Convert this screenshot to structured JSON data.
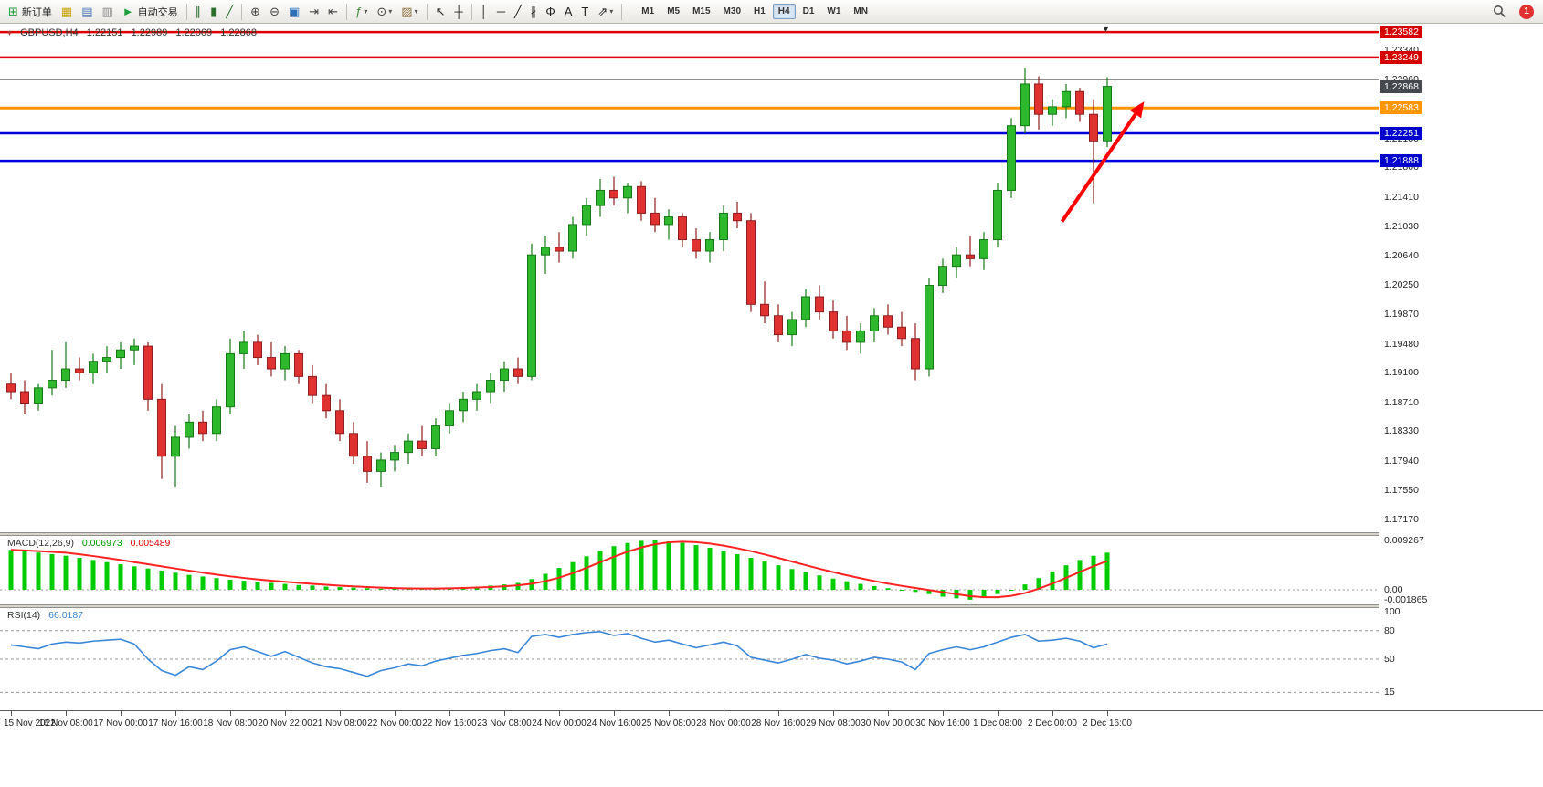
{
  "icons": {
    "symbol_window": "▾",
    "shift_marker": "▼"
  },
  "toolbar": {
    "groups": [
      {
        "name": "trade-group",
        "items": [
          {
            "name": "new-order-button",
            "icon": "new-order-icon",
            "glyph": "⊞",
            "color": "#1f9d3a",
            "label": "新订单"
          },
          {
            "name": "charts-window-button",
            "icon": "charts-icon",
            "glyph": "▦",
            "color": "#c8a200"
          },
          {
            "name": "navigator-button",
            "icon": "navigator-icon",
            "glyph": "▤",
            "color": "#4a76b8"
          },
          {
            "name": "terminal-button",
            "icon": "terminal-icon",
            "glyph": "▥",
            "color": "#8a8a8a"
          },
          {
            "name": "autotrading-button",
            "icon": "autotrading-icon",
            "glyph": "►",
            "color": "#1f9d3a",
            "label": "自动交易"
          }
        ]
      },
      {
        "name": "chart-type-group",
        "items": [
          {
            "name": "bar-chart-button",
            "icon": "bar-chart-icon",
            "glyph": "∥",
            "color": "#2b6f2b"
          },
          {
            "name": "candlestick-chart-button",
            "icon": "candlestick-chart-icon",
            "glyph": "▮",
            "color": "#2b6f2b"
          },
          {
            "name": "line-chart-button",
            "icon": "line-chart-icon",
            "glyph": "╱",
            "color": "#2b6f2b"
          }
        ]
      },
      {
        "name": "zoom-group",
        "items": [
          {
            "name": "zoom-in-button",
            "icon": "zoom-in-icon",
            "glyph": "⊕",
            "color": "#444444"
          },
          {
            "name": "zoom-out-button",
            "icon": "zoom-out-icon",
            "glyph": "⊖",
            "color": "#444444"
          },
          {
            "name": "tile-windows-button",
            "icon": "tile-windows-icon",
            "glyph": "▣",
            "color": "#2b6fb8"
          },
          {
            "name": "auto-scroll-button",
            "icon": "auto-scroll-icon",
            "glyph": "⇥",
            "color": "#444444"
          },
          {
            "name": "chart-shift-button",
            "icon": "chart-shift-icon",
            "glyph": "⇤",
            "color": "#444444"
          }
        ]
      },
      {
        "name": "insert-group",
        "items": [
          {
            "name": "indicators-button",
            "icon": "indicators-icon",
            "glyph": "ƒ",
            "color": "#3b8a3b",
            "dropdown": true
          },
          {
            "name": "periods-button",
            "icon": "periods-icon",
            "glyph": "⊙",
            "color": "#444444",
            "dropdown": true
          },
          {
            "name": "templates-button",
            "icon": "templates-icon",
            "glyph": "▨",
            "color": "#8a6d3b",
            "dropdown": true
          }
        ]
      },
      {
        "name": "cursor-group",
        "items": [
          {
            "name": "cursor-button",
            "icon": "cursor-icon",
            "glyph": "↖",
            "color": "#222222"
          },
          {
            "name": "crosshair-button",
            "icon": "crosshair-icon",
            "glyph": "┼",
            "color": "#222222"
          }
        ]
      },
      {
        "name": "objects-group",
        "items": [
          {
            "name": "vertical-line-button",
            "icon": "vertical-line-icon",
            "glyph": "│",
            "color": "#222222"
          },
          {
            "name": "horizontal-line-button",
            "icon": "horizontal-line-icon",
            "glyph": "─",
            "color": "#222222"
          },
          {
            "name": "trendline-button",
            "icon": "trendline-icon",
            "glyph": "╱",
            "color": "#222222"
          },
          {
            "name": "channel-button",
            "icon": "channel-icon",
            "glyph": "∦",
            "color": "#222222"
          },
          {
            "name": "fibonacci-button",
            "icon": "fibonacci-icon",
            "glyph": "Φ",
            "color": "#222222"
          },
          {
            "name": "text-button",
            "icon": "text-icon",
            "glyph": "A",
            "color": "#222222"
          },
          {
            "name": "label-button",
            "icon": "label-icon",
            "glyph": "T",
            "color": "#222222"
          },
          {
            "name": "arrows-button",
            "icon": "arrows-icon",
            "glyph": "⇗",
            "color": "#222222",
            "dropdown": true
          }
        ]
      }
    ],
    "timeframes": [
      "M1",
      "M5",
      "M15",
      "M30",
      "H1",
      "H4",
      "D1",
      "W1",
      "MN"
    ],
    "active_timeframe": "H4",
    "notification_count": "1"
  },
  "chart_data": {
    "type": "candlestick",
    "symbol": "GBPUSD,H4",
    "ohlc_header": {
      "open": "1.22151",
      "high": "1.22989",
      "low": "1.22069",
      "close": "1.22868"
    },
    "x_labels": [
      "15 Nov 2022",
      "16 Nov 08:00",
      "17 Nov 00:00",
      "17 Nov 16:00",
      "18 Nov 08:00",
      "20 Nov 22:00",
      "21 Nov 08:00",
      "22 Nov 00:00",
      "22 Nov 16:00",
      "23 Nov 08:00",
      "24 Nov 00:00",
      "24 Nov 16:00",
      "25 Nov 08:00",
      "28 Nov 00:00",
      "28 Nov 16:00",
      "29 Nov 08:00",
      "30 Nov 00:00",
      "30 Nov 16:00",
      "1 Dec 08:00",
      "2 Dec 00:00",
      "2 Dec 16:00"
    ],
    "label_every": 4,
    "price_axis": {
      "min": 1.17,
      "max": 1.23692,
      "ticks": [
        "1.23340",
        "1.22960",
        "1.22570",
        "1.22180",
        "1.21800",
        "1.21410",
        "1.21030",
        "1.20640",
        "1.20250",
        "1.19870",
        "1.19480",
        "1.19100",
        "1.18710",
        "1.18330",
        "1.17940",
        "1.17550",
        "1.17170"
      ]
    },
    "price_tags": [
      {
        "name": "resistance-tag-1",
        "value": "1.23582",
        "bg": "#d40000"
      },
      {
        "name": "resistance-tag-2",
        "value": "1.23249",
        "bg": "#d40000"
      },
      {
        "name": "bid-price-tag",
        "value": "1.22868",
        "bg": "#45494e"
      },
      {
        "name": "orange-level-tag",
        "value": "1.22583",
        "bg": "#ff9500"
      },
      {
        "name": "support-tag-1",
        "value": "1.22251",
        "bg": "#0000cc"
      },
      {
        "name": "support-tag-2",
        "value": "1.21888",
        "bg": "#0000cc"
      }
    ],
    "hlines": [
      {
        "name": "resistance-line-1",
        "price": 1.23582,
        "color": "#e00000",
        "width": 2.5
      },
      {
        "name": "resistance-line-2",
        "price": 1.23249,
        "color": "#e00000",
        "width": 2.5
      },
      {
        "name": "dark-level-line",
        "price": 1.2296,
        "color": "#4a4a4a",
        "width": 1.5
      },
      {
        "name": "orange-level-line",
        "price": 1.22583,
        "color": "#ff9500",
        "width": 3
      },
      {
        "name": "support-line-1",
        "price": 1.22251,
        "color": "#0000dd",
        "width": 2.5
      },
      {
        "name": "support-line-2",
        "price": 1.21888,
        "color": "#0000dd",
        "width": 2.5
      }
    ],
    "arrow": {
      "from_index": 76.7,
      "from_price": 1.2109,
      "to_index": 82.7,
      "to_price": 1.2267,
      "color": "#ff0000",
      "width": 4
    },
    "colors": {
      "up": "#2eb82e",
      "up_stroke": "#157a15",
      "down": "#e03131",
      "down_stroke": "#8f1d1d",
      "macd_hist": "#00cc00",
      "macd_signal": "#ff2222",
      "rsi_line": "#3a87d9"
    },
    "candles": [
      [
        1.1895,
        1.191,
        1.1875,
        1.1885
      ],
      [
        1.1885,
        1.19,
        1.1855,
        1.187
      ],
      [
        1.187,
        1.1895,
        1.186,
        1.189
      ],
      [
        1.189,
        1.194,
        1.188,
        1.19
      ],
      [
        1.19,
        1.195,
        1.189,
        1.1915
      ],
      [
        1.1915,
        1.193,
        1.19,
        1.191
      ],
      [
        1.191,
        1.1935,
        1.1895,
        1.1925
      ],
      [
        1.1925,
        1.1945,
        1.191,
        1.193
      ],
      [
        1.193,
        1.195,
        1.1915,
        1.194
      ],
      [
        1.194,
        1.1955,
        1.192,
        1.1945
      ],
      [
        1.1945,
        1.195,
        1.186,
        1.1875
      ],
      [
        1.1875,
        1.1895,
        1.177,
        1.18
      ],
      [
        1.18,
        1.184,
        1.176,
        1.1825
      ],
      [
        1.1825,
        1.1855,
        1.181,
        1.1845
      ],
      [
        1.1845,
        1.186,
        1.182,
        1.183
      ],
      [
        1.183,
        1.1875,
        1.182,
        1.1865
      ],
      [
        1.1865,
        1.1955,
        1.1855,
        1.1935
      ],
      [
        1.1935,
        1.1965,
        1.1915,
        1.195
      ],
      [
        1.195,
        1.196,
        1.192,
        1.193
      ],
      [
        1.193,
        1.195,
        1.1905,
        1.1915
      ],
      [
        1.1915,
        1.1945,
        1.19,
        1.1935
      ],
      [
        1.1935,
        1.194,
        1.1895,
        1.1905
      ],
      [
        1.1905,
        1.192,
        1.187,
        1.188
      ],
      [
        1.188,
        1.1895,
        1.185,
        1.186
      ],
      [
        1.186,
        1.1875,
        1.182,
        1.183
      ],
      [
        1.183,
        1.1845,
        1.179,
        1.18
      ],
      [
        1.18,
        1.182,
        1.1765,
        1.178
      ],
      [
        1.178,
        1.1805,
        1.176,
        1.1795
      ],
      [
        1.1795,
        1.1815,
        1.178,
        1.1805
      ],
      [
        1.1805,
        1.183,
        1.179,
        1.182
      ],
      [
        1.182,
        1.184,
        1.18,
        1.181
      ],
      [
        1.181,
        1.185,
        1.18,
        1.184
      ],
      [
        1.184,
        1.187,
        1.183,
        1.186
      ],
      [
        1.186,
        1.1885,
        1.1845,
        1.1875
      ],
      [
        1.1875,
        1.1895,
        1.186,
        1.1885
      ],
      [
        1.1885,
        1.191,
        1.187,
        1.19
      ],
      [
        1.19,
        1.1925,
        1.1885,
        1.1915
      ],
      [
        1.1915,
        1.193,
        1.1895,
        1.1905
      ],
      [
        1.1905,
        1.208,
        1.19,
        1.2065
      ],
      [
        1.2065,
        1.209,
        1.204,
        1.2075
      ],
      [
        1.2075,
        1.2095,
        1.2055,
        1.207
      ],
      [
        1.207,
        1.2115,
        1.206,
        1.2105
      ],
      [
        1.2105,
        1.214,
        1.209,
        1.213
      ],
      [
        1.213,
        1.2165,
        1.2115,
        1.215
      ],
      [
        1.215,
        1.2168,
        1.213,
        1.214
      ],
      [
        1.214,
        1.216,
        1.212,
        1.2155
      ],
      [
        1.2155,
        1.2162,
        1.211,
        1.212
      ],
      [
        1.212,
        1.214,
        1.2095,
        1.2105
      ],
      [
        1.2105,
        1.2125,
        1.2085,
        1.2115
      ],
      [
        1.2115,
        1.212,
        1.2075,
        1.2085
      ],
      [
        1.2085,
        1.21,
        1.206,
        1.207
      ],
      [
        1.207,
        1.2095,
        1.2055,
        1.2085
      ],
      [
        1.2085,
        1.213,
        1.207,
        1.212
      ],
      [
        1.212,
        1.2135,
        1.21,
        1.211
      ],
      [
        1.211,
        1.212,
        1.199,
        1.2
      ],
      [
        1.2,
        1.203,
        1.1975,
        1.1985
      ],
      [
        1.1985,
        1.2,
        1.195,
        1.196
      ],
      [
        1.196,
        1.199,
        1.1945,
        1.198
      ],
      [
        1.198,
        1.202,
        1.197,
        1.201
      ],
      [
        1.201,
        1.2025,
        1.198,
        1.199
      ],
      [
        1.199,
        1.2005,
        1.1955,
        1.1965
      ],
      [
        1.1965,
        1.1985,
        1.194,
        1.195
      ],
      [
        1.195,
        1.1975,
        1.1935,
        1.1965
      ],
      [
        1.1965,
        1.1995,
        1.195,
        1.1985
      ],
      [
        1.1985,
        1.2,
        1.196,
        1.197
      ],
      [
        1.197,
        1.199,
        1.1945,
        1.1955
      ],
      [
        1.1955,
        1.1975,
        1.19,
        1.1915
      ],
      [
        1.1915,
        1.2035,
        1.1905,
        1.2025
      ],
      [
        1.2025,
        1.206,
        1.2015,
        1.205
      ],
      [
        1.205,
        1.2075,
        1.2035,
        1.2065
      ],
      [
        1.2065,
        1.209,
        1.205,
        1.206
      ],
      [
        1.206,
        1.2095,
        1.2045,
        1.2085
      ],
      [
        1.2085,
        1.216,
        1.2075,
        1.215
      ],
      [
        1.215,
        1.2245,
        1.214,
        1.2235
      ],
      [
        1.2235,
        1.2311,
        1.2225,
        1.229
      ],
      [
        1.229,
        1.23,
        1.223,
        1.225
      ],
      [
        1.225,
        1.227,
        1.2235,
        1.226
      ],
      [
        1.226,
        1.229,
        1.2245,
        1.228
      ],
      [
        1.228,
        1.2285,
        1.224,
        1.225
      ],
      [
        1.225,
        1.227,
        1.2133,
        1.2215
      ],
      [
        1.22151,
        1.22989,
        1.22069,
        1.22868
      ]
    ],
    "macd": {
      "label": "MACD(12,26,9)",
      "main_value": "0.006973",
      "signal_value": "0.005489",
      "axis_labels": [
        "0.009267",
        "0.00",
        "-0.001865"
      ],
      "histogram": [
        0.0075,
        0.0073,
        0.007,
        0.0067,
        0.0064,
        0.006,
        0.0056,
        0.0052,
        0.0048,
        0.0044,
        0.004,
        0.0036,
        0.0032,
        0.0028,
        0.0025,
        0.0022,
        0.0019,
        0.0017,
        0.0015,
        0.0013,
        0.0011,
        0.0009,
        0.0008,
        0.0006,
        0.0005,
        0.0004,
        0.0003,
        0.0002,
        0.0002,
        0.0002,
        0.0003,
        0.0003,
        0.0004,
        0.0005,
        0.0006,
        0.0008,
        0.001,
        0.0013,
        0.002,
        0.003,
        0.0041,
        0.0052,
        0.0063,
        0.0073,
        0.0082,
        0.0088,
        0.0092,
        0.009267,
        0.0091,
        0.0088,
        0.0084,
        0.0079,
        0.0073,
        0.0067,
        0.006,
        0.0053,
        0.0046,
        0.0039,
        0.0033,
        0.0027,
        0.0021,
        0.0016,
        0.0011,
        0.0007,
        0.0003,
        0.0,
        -0.0004,
        -0.0008,
        -0.0013,
        -0.0016,
        -0.001865,
        -0.0014,
        -0.0008,
        0.0,
        0.001,
        0.0022,
        0.0034,
        0.0046,
        0.0056,
        0.0064,
        0.006973
      ]
    },
    "rsi": {
      "label": "RSI(14)",
      "value": "66.0187",
      "axis_labels": [
        "100",
        "80",
        "50",
        "15"
      ],
      "levels": [
        80,
        50,
        15
      ],
      "series": [
        65,
        63,
        61,
        66,
        68,
        67,
        69,
        70,
        71,
        66,
        50,
        38,
        33,
        42,
        39,
        48,
        60,
        63,
        58,
        53,
        58,
        52,
        46,
        42,
        40,
        36,
        32,
        38,
        41,
        45,
        43,
        48,
        51,
        54,
        56,
        59,
        61,
        57,
        74,
        76,
        73,
        76,
        78,
        79,
        75,
        77,
        72,
        68,
        70,
        66,
        62,
        65,
        68,
        64,
        52,
        49,
        46,
        50,
        55,
        51,
        49,
        45,
        48,
        52,
        50,
        47,
        39,
        56,
        60,
        63,
        60,
        63,
        68,
        73,
        76,
        69,
        70,
        72,
        69,
        62,
        66.0187
      ]
    }
  }
}
